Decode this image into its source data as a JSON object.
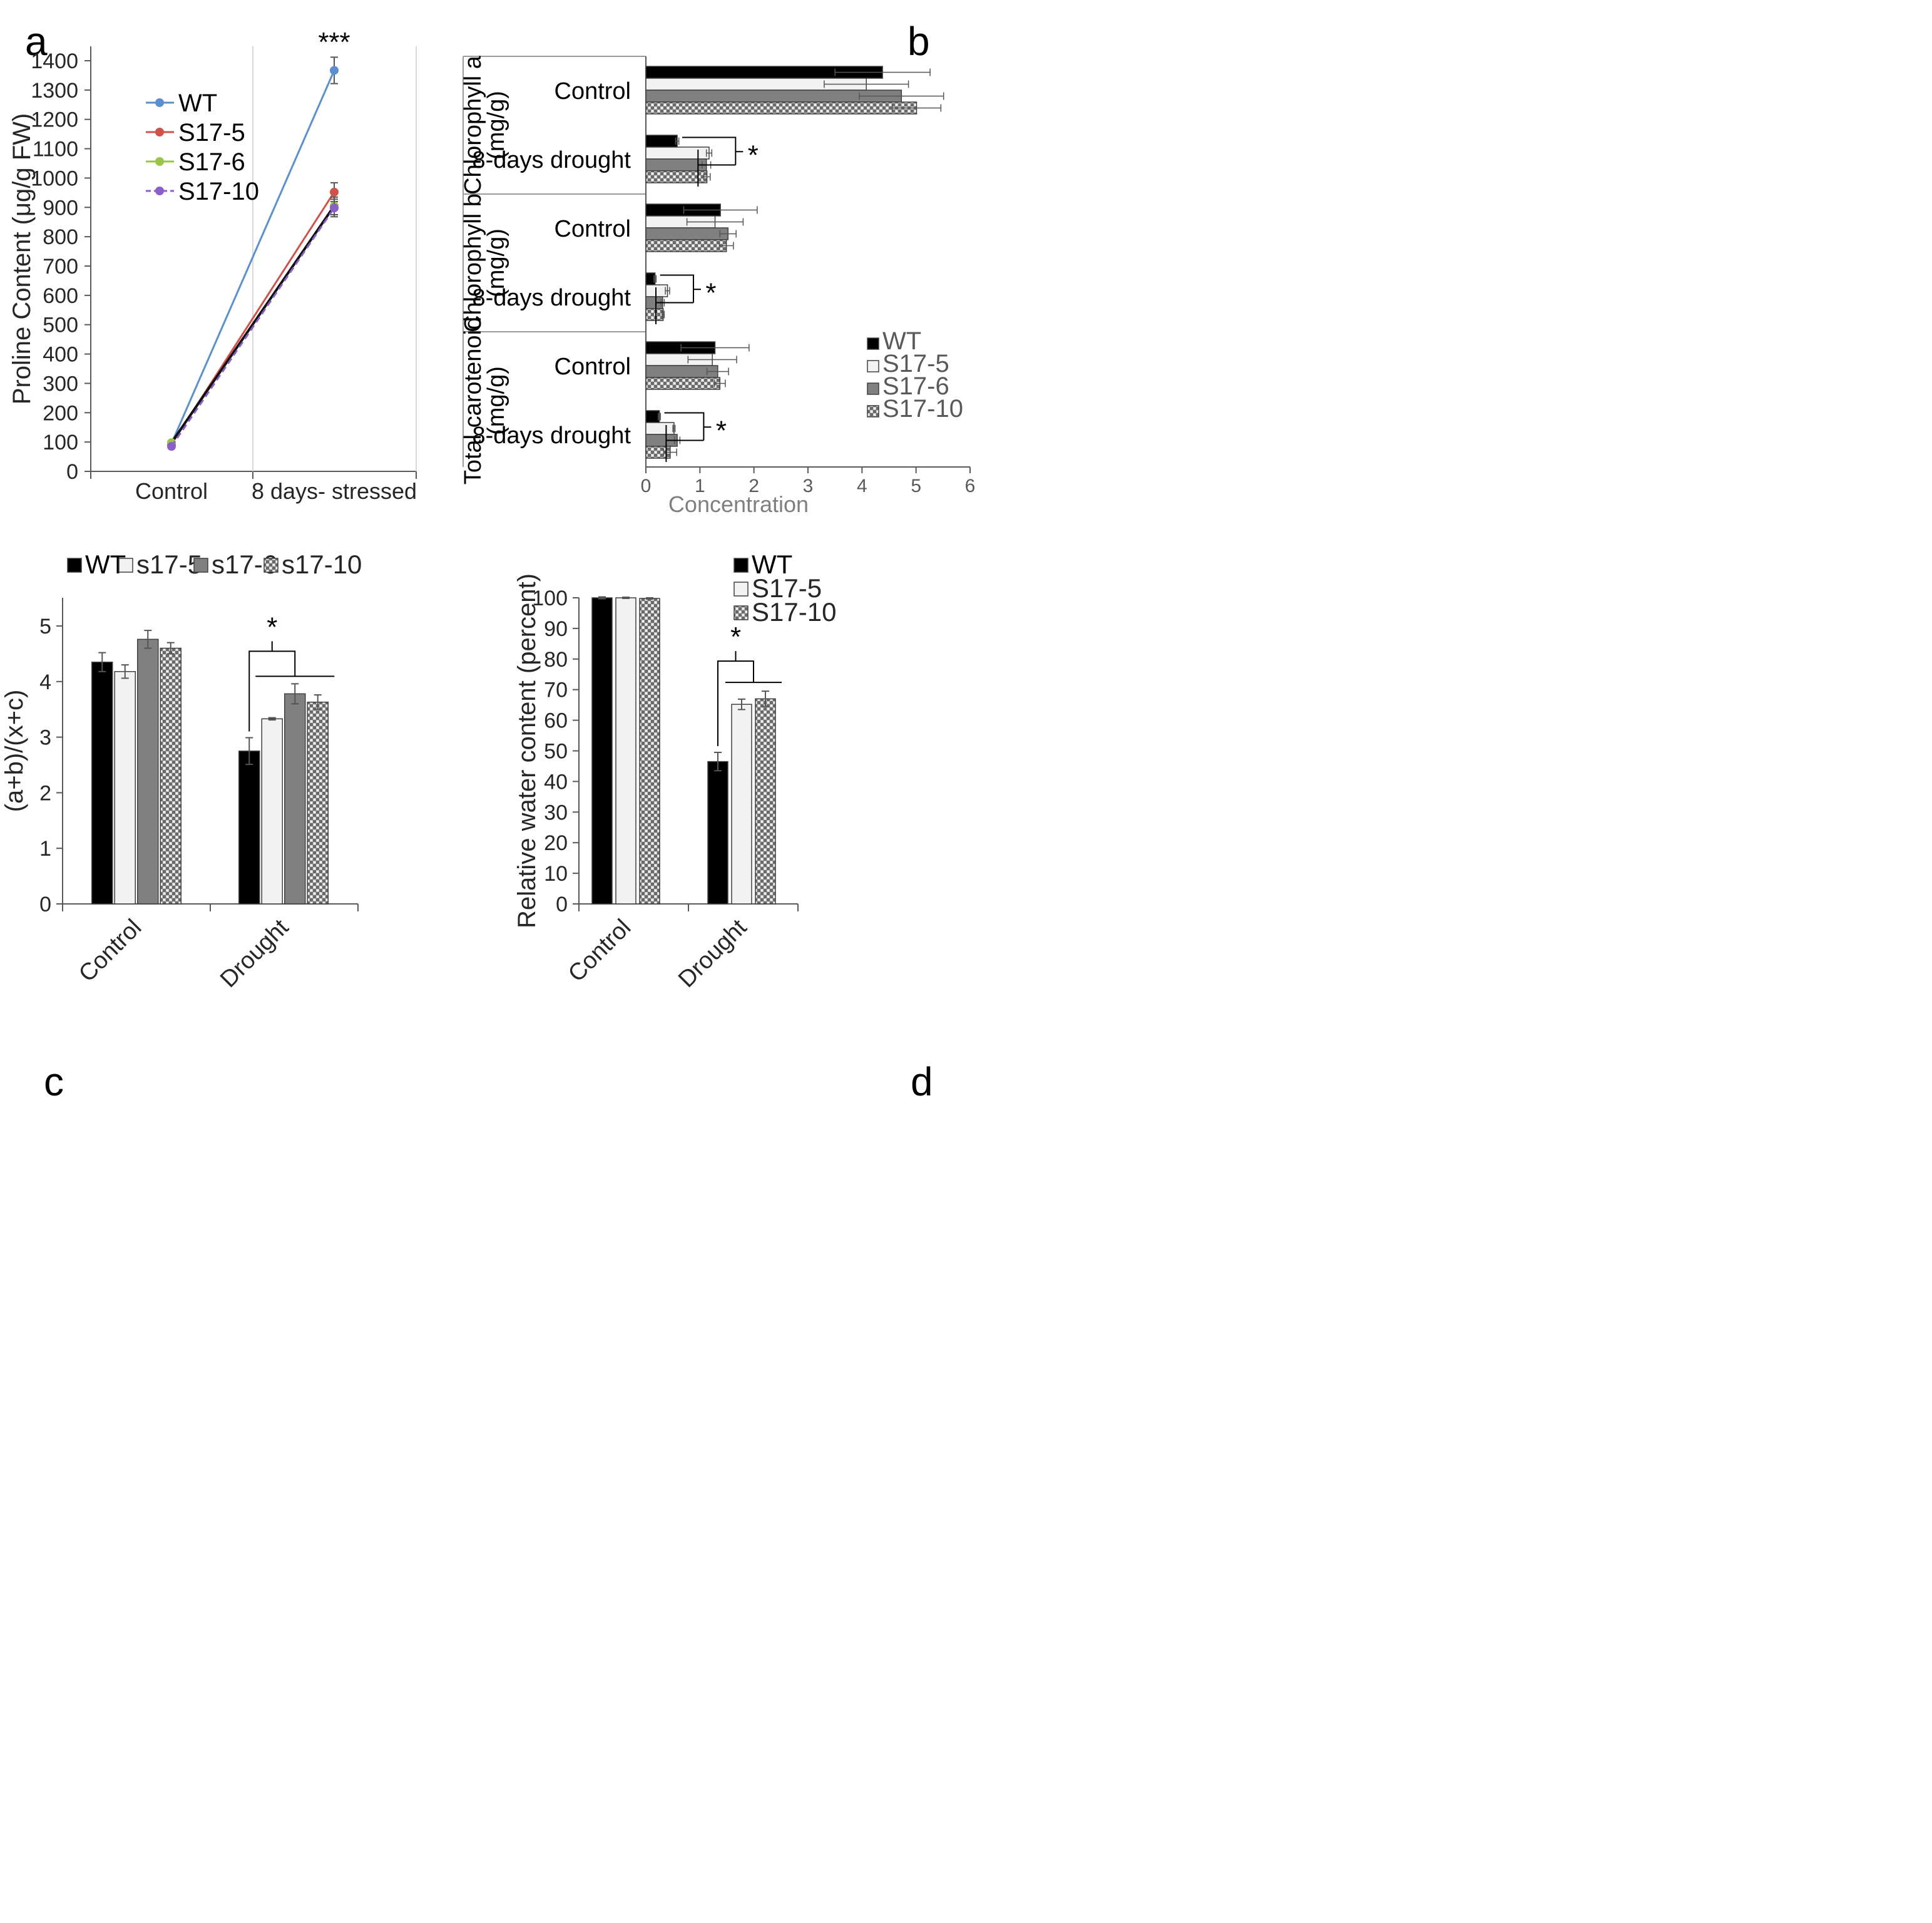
{
  "colors": {
    "wt": "#000000",
    "s17_5": "#f2f2f2",
    "s17_6": "#808080",
    "s17_10": "#b0b0b0",
    "line_wt": "#5b8fd0",
    "line_s17_5": "#d0504a",
    "line_s17_6": "#9ac44a",
    "line_s17_10": "#8a5fc8",
    "axis": "#595959",
    "grid": "#d9d9d9",
    "text": "#262626"
  },
  "chart_data": [
    {
      "panel": "a",
      "type": "line",
      "categories": [
        "Control",
        "8 days- stressed"
      ],
      "ylabel": "Proline Content (μg/g FW)",
      "ylim": [
        0,
        1400
      ],
      "yticks": [
        "0",
        "100",
        "200",
        "300",
        "400",
        "500",
        "600",
        "700",
        "800",
        "900",
        "1000",
        "1100",
        "1200",
        "1300",
        "1400"
      ],
      "significance": "***",
      "legend_position": "top-left",
      "series": [
        {
          "name": "WT",
          "values": [
            95,
            1367
          ],
          "errors": [
            5,
            45
          ],
          "color_key": "line_wt",
          "dashed": false
        },
        {
          "name": "S17-5",
          "values": [
            92,
            952
          ],
          "errors": [
            5,
            32
          ],
          "color_key": "line_s17_5",
          "dashed": false
        },
        {
          "name": "S17-6",
          "values": [
            98,
            905
          ],
          "errors": [
            5,
            30
          ],
          "color_key": "line_s17_6",
          "dashed": false
        },
        {
          "name": "S17-10",
          "values": [
            85,
            898
          ],
          "errors": [
            5,
            30
          ],
          "color_key": "line_s17_10",
          "dashed": true
        }
      ]
    },
    {
      "panel": "b",
      "type": "bar",
      "orientation": "horizontal",
      "xlabel": "Concentration",
      "xlim": [
        0,
        6
      ],
      "xticks": [
        "0",
        "1",
        "2",
        "3",
        "4",
        "5",
        "6"
      ],
      "legend_position": "right",
      "series_names": [
        "WT",
        "S17-5",
        "S17-6",
        "S17-10"
      ],
      "groups": [
        {
          "label": "Chlorophyll a (mg/g)",
          "label_lines": [
            "Chlorophyll a",
            "(mg/g)"
          ],
          "subgroups": [
            {
              "label": "Control",
              "values": [
                4.38,
                4.08,
                4.73,
                5.01
              ],
              "errors": [
                0.88,
                0.78,
                0.78,
                0.45
              ]
            },
            {
              "label": "8-days drought",
              "values": [
                0.58,
                1.17,
                1.12,
                1.13
              ],
              "errors": [
                0.03,
                0.05,
                0.08,
                0.06
              ],
              "sig": "*"
            }
          ]
        },
        {
          "label": "Chlorophyll b (mg/g)",
          "label_lines": [
            "Chlorophyll b",
            "(mg/g)"
          ],
          "subgroups": [
            {
              "label": "Control",
              "values": [
                1.38,
                1.28,
                1.52,
                1.49
              ],
              "errors": [
                0.68,
                0.52,
                0.15,
                0.13
              ]
            },
            {
              "label": "8-days drought",
              "values": [
                0.17,
                0.4,
                0.31,
                0.32
              ],
              "errors": [
                0.02,
                0.04,
                0.03,
                0.02
              ],
              "sig": "*"
            }
          ]
        },
        {
          "label": "Total carotenoid (mg/g)",
          "label_lines": [
            "Total carotenoid",
            "(mg/g)"
          ],
          "subgroups": [
            {
              "label": "Control",
              "values": [
                1.28,
                1.23,
                1.33,
                1.37
              ],
              "errors": [
                0.63,
                0.45,
                0.2,
                0.1
              ]
            },
            {
              "label": "8-days drought",
              "values": [
                0.25,
                0.52,
                0.58,
                0.45
              ],
              "errors": [
                0.02,
                0.02,
                0.05,
                0.12
              ],
              "sig": "*"
            }
          ]
        }
      ]
    },
    {
      "panel": "c",
      "type": "bar",
      "ylabel": "(a+b)/(x+c)",
      "ylim": [
        0,
        5.5
      ],
      "yticks": [
        "0",
        "1",
        "2",
        "3",
        "4",
        "5"
      ],
      "categories": [
        "Control",
        "Drought"
      ],
      "legend_position": "top",
      "significance": "*",
      "series": [
        {
          "name": "WT",
          "values": [
            4.35,
            2.75
          ],
          "errors": [
            0.17,
            0.24
          ]
        },
        {
          "name": "s17-5",
          "values": [
            4.18,
            3.33
          ],
          "errors": [
            0.12,
            0.02
          ]
        },
        {
          "name": "s17-6",
          "values": [
            4.76,
            3.78
          ],
          "errors": [
            0.16,
            0.18
          ]
        },
        {
          "name": "s17-10",
          "values": [
            4.6,
            3.63
          ],
          "errors": [
            0.1,
            0.13
          ]
        }
      ]
    },
    {
      "panel": "d",
      "type": "bar",
      "ylabel": "Relative water content (percent)",
      "ylim": [
        0,
        100
      ],
      "yticks": [
        "0",
        "10",
        "20",
        "30",
        "40",
        "50",
        "60",
        "70",
        "80",
        "90",
        "100"
      ],
      "categories": [
        "Control",
        "Drought"
      ],
      "legend_position": "top",
      "significance": "*",
      "series": [
        {
          "name": "WT",
          "values": [
            100,
            46.5
          ],
          "errors": [
            0.3,
            3.0
          ]
        },
        {
          "name": "S17-5",
          "values": [
            100,
            65.2
          ],
          "errors": [
            0.2,
            1.7
          ]
        },
        {
          "name": "S17-10",
          "values": [
            99.8,
            67.0
          ],
          "errors": [
            0.2,
            2.5
          ]
        }
      ]
    }
  ],
  "panel_labels": [
    "a",
    "b",
    "c",
    "d"
  ]
}
